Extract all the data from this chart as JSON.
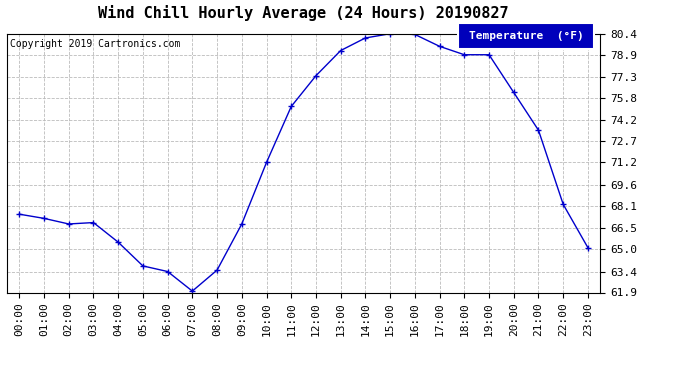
{
  "title": "Wind Chill Hourly Average (24 Hours) 20190827",
  "copyright_text": "Copyright 2019 Cartronics.com",
  "legend_label": "Temperature  (°F)",
  "x_labels": [
    "00:00",
    "01:00",
    "02:00",
    "03:00",
    "04:00",
    "05:00",
    "06:00",
    "07:00",
    "08:00",
    "09:00",
    "10:00",
    "11:00",
    "12:00",
    "13:00",
    "14:00",
    "15:00",
    "16:00",
    "17:00",
    "18:00",
    "19:00",
    "20:00",
    "21:00",
    "22:00",
    "23:00"
  ],
  "y_values": [
    67.5,
    67.2,
    66.8,
    66.9,
    65.5,
    63.8,
    63.4,
    62.0,
    63.5,
    66.8,
    71.2,
    75.2,
    77.4,
    79.2,
    80.1,
    80.4,
    80.35,
    79.5,
    78.9,
    78.9,
    76.2,
    73.5,
    68.2,
    65.1
  ],
  "ylim_min": 61.9,
  "ylim_max": 80.4,
  "yticks": [
    61.9,
    63.4,
    65.0,
    66.5,
    68.1,
    69.6,
    71.2,
    72.7,
    74.2,
    75.8,
    77.3,
    78.9,
    80.4
  ],
  "line_color": "#0000cc",
  "marker": "+",
  "marker_size": 5,
  "marker_linewidth": 1.0,
  "linewidth": 1.0,
  "background_color": "#ffffff",
  "plot_bg_color": "#ffffff",
  "grid_color": "#bbbbbb",
  "title_fontsize": 11,
  "tick_fontsize": 8,
  "copyright_fontsize": 7,
  "legend_bg_color": "#0000bb",
  "legend_text_color": "#ffffff",
  "legend_fontsize": 8
}
